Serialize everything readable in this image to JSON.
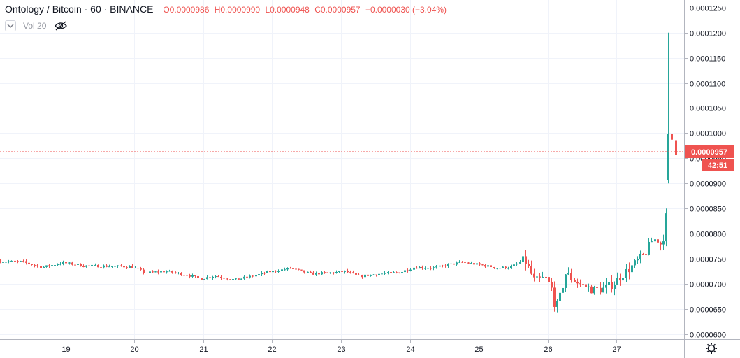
{
  "header": {
    "symbol": "Ontology / Bitcoin · 60 · BINANCE",
    "open": "O0.0000986",
    "high": "H0.0000990",
    "low": "L0.0000948",
    "close": "C0.0000957",
    "change": "−0.0000030 (−3.04%)",
    "up_color": "#26a69a",
    "down_color": "#ef5350"
  },
  "volume_indicator": {
    "label": "Vol 20"
  },
  "price_label": {
    "value": "0.0000957",
    "countdown": "42:51"
  },
  "icons": {
    "collapse": "chevron-down-icon",
    "visibility": "eye-off-icon",
    "settings": "gear-icon"
  },
  "chart_data": {
    "type": "candlestick",
    "y_ticks": [
      "0.0000600",
      "0.0000650",
      "0.0000700",
      "0.0000750",
      "0.0000800",
      "0.0000850",
      "0.0000900",
      "0.0000950",
      "0.0001000",
      "0.0001050",
      "0.0001100",
      "0.0001150",
      "0.0001200",
      "0.0001250"
    ],
    "x_ticks": [
      "19",
      "20",
      "21",
      "22",
      "23",
      "24",
      "25",
      "26",
      "27"
    ],
    "ylim": [
      5.9e-05,
      0.0001265
    ],
    "xlim": [
      18.05,
      27.98
    ],
    "last_price": 9.57e-05,
    "grid": true,
    "series": [
      {
        "anchors_x": [
          18.05,
          18.4,
          18.7,
          19.0,
          19.3,
          19.7,
          20.0,
          20.2,
          20.5,
          20.8,
          21.0,
          21.2,
          21.5,
          21.8,
          22.0,
          22.3,
          22.6,
          22.9,
          23.1,
          23.3,
          23.6,
          23.9,
          24.1,
          24.4,
          24.6,
          24.8,
          25.1,
          25.3,
          25.5,
          25.7,
          25.85,
          26.0,
          26.1,
          26.15,
          26.2,
          26.3,
          26.5,
          26.7,
          26.85,
          27.0,
          27.1,
          27.3,
          27.45,
          27.55,
          27.62,
          27.7,
          27.75,
          27.8,
          27.82,
          27.85,
          27.9,
          27.95
        ],
        "anchors_y": [
          7.45e-05,
          7.44e-05,
          7.33e-05,
          7.42e-05,
          7.36e-05,
          7.35e-05,
          7.34e-05,
          7.22e-05,
          7.25e-05,
          7.18e-05,
          7.1e-05,
          7.16e-05,
          7.08e-05,
          7.17e-05,
          7.24e-05,
          7.31e-05,
          7.2e-05,
          7.22e-05,
          7.25e-05,
          7.15e-05,
          7.2e-05,
          7.23e-05,
          7.33e-05,
          7.32e-05,
          7.38e-05,
          7.43e-05,
          7.37e-05,
          7.32e-05,
          7.33e-05,
          7.48e-05,
          7.05e-05,
          7.12e-05,
          6.88e-05,
          6.5e-05,
          6.65e-05,
          7.2e-05,
          7e-05,
          6.88e-05,
          6.9e-05,
          7e-05,
          7.15e-05,
          7.4e-05,
          7.6e-05,
          7.85e-05,
          7.9e-05,
          7.75e-05,
          8.3e-05,
          8.5e-05,
          9e-05,
          9.9e-05,
          9.75e-05,
          9.57e-05
        ],
        "spikes": [
          {
            "x": 27.75,
            "o": 9.06e-05,
            "h": 0.00012,
            "l": 9e-05,
            "c": 9.98e-05
          },
          {
            "x": 27.8,
            "o": 9.98e-05,
            "h": 0.000101,
            "l": 9.4e-05,
            "c": 9.87e-05
          },
          {
            "x": 27.86,
            "o": 9.86e-05,
            "h": 9.9e-05,
            "l": 9.48e-05,
            "c": 9.57e-05
          }
        ]
      }
    ]
  }
}
